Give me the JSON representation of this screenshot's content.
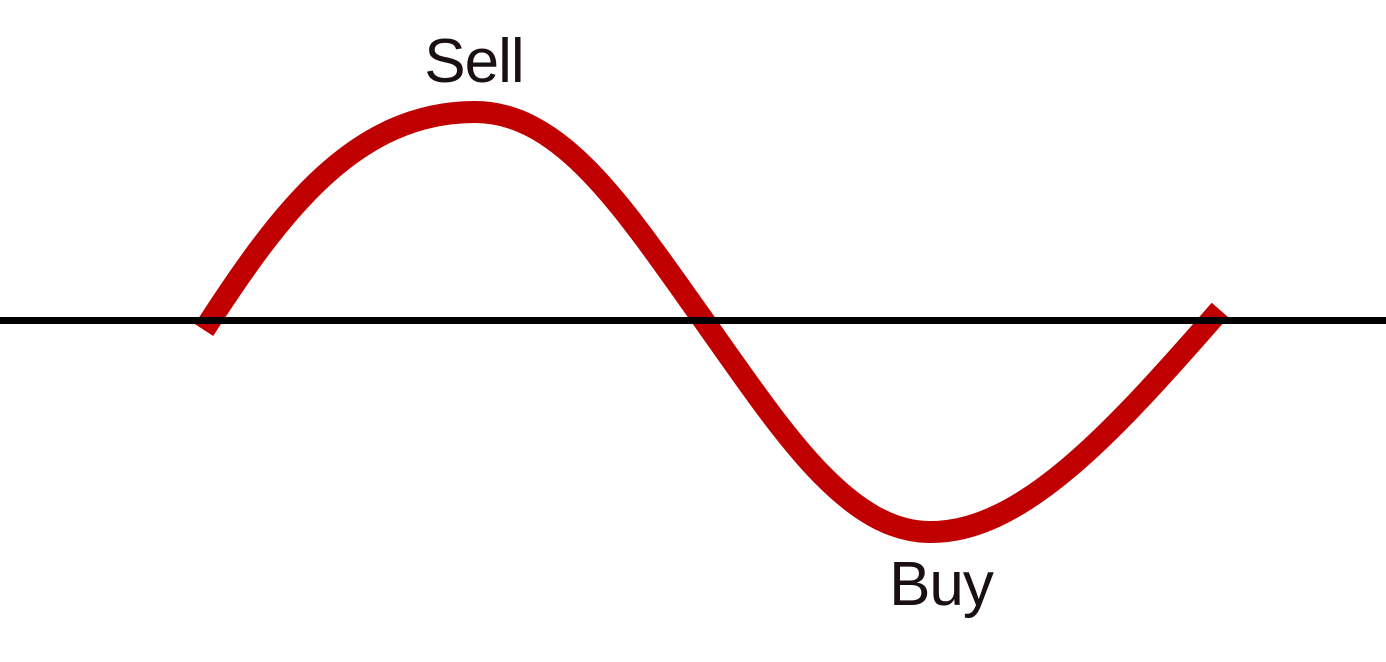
{
  "diagram": {
    "labels": {
      "peak": "Sell",
      "trough": "Buy"
    },
    "colors": {
      "wave": "#c00000",
      "baseline": "#000000",
      "text": "#1a0f14",
      "background": "#ffffff"
    }
  }
}
